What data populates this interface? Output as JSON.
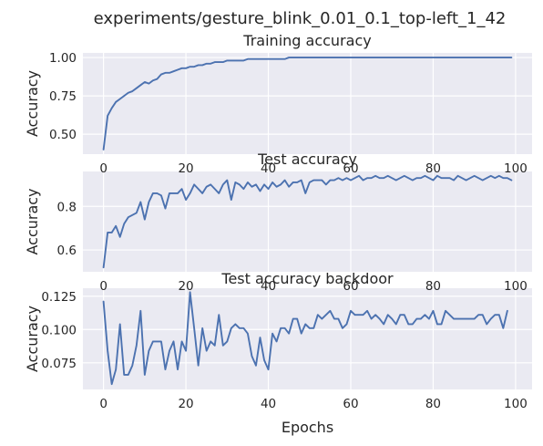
{
  "figure": {
    "suptitle": "experiments/gesture_blink_0.01_0.1_top-left_1_42"
  },
  "chart_data": [
    {
      "type": "line",
      "title": "Training accuracy",
      "xlabel": "",
      "ylabel": "Accuracy",
      "xlim": [
        -5,
        104
      ],
      "ylim": [
        0.37,
        1.03
      ],
      "xticks": [
        0,
        20,
        40,
        60,
        80,
        100
      ],
      "xtick_labels": [
        "0",
        "20",
        "40",
        "60",
        "80",
        "100"
      ],
      "yticks": [
        0.5,
        0.75,
        1.0
      ],
      "ytick_labels": [
        "0.50",
        "0.75",
        "1.00"
      ],
      "grid": true,
      "color": "#4c72b0",
      "x_start": 0,
      "values": [
        0.4,
        0.62,
        0.67,
        0.71,
        0.73,
        0.75,
        0.77,
        0.78,
        0.8,
        0.82,
        0.84,
        0.83,
        0.85,
        0.86,
        0.89,
        0.9,
        0.9,
        0.91,
        0.92,
        0.93,
        0.93,
        0.94,
        0.94,
        0.95,
        0.95,
        0.96,
        0.96,
        0.97,
        0.97,
        0.97,
        0.98,
        0.98,
        0.98,
        0.98,
        0.98,
        0.99,
        0.99,
        0.99,
        0.99,
        0.99,
        0.99,
        0.99,
        0.99,
        0.99,
        0.99,
        1.0,
        1.0,
        1.0,
        1.0,
        1.0,
        1.0,
        1.0,
        1.0,
        1.0,
        1.0,
        1.0,
        1.0,
        1.0,
        1.0,
        1.0,
        1.0,
        1.0,
        1.0,
        1.0,
        1.0,
        1.0,
        1.0,
        1.0,
        1.0,
        1.0,
        1.0,
        1.0,
        1.0,
        1.0,
        1.0,
        1.0,
        1.0,
        1.0,
        1.0,
        1.0,
        1.0,
        1.0,
        1.0,
        1.0,
        1.0,
        1.0,
        1.0,
        1.0,
        1.0,
        1.0,
        1.0,
        1.0,
        1.0,
        1.0,
        1.0,
        1.0,
        1.0,
        1.0,
        1.0,
        1.0
      ]
    },
    {
      "type": "line",
      "title": "Test accuracy",
      "xlabel": "",
      "ylabel": "Accuracy",
      "xlim": [
        -5,
        104
      ],
      "ylim": [
        0.5,
        0.96
      ],
      "xticks": [
        0,
        20,
        40,
        60,
        80,
        100
      ],
      "xtick_labels": [
        "0",
        "20",
        "40",
        "60",
        "80",
        "100"
      ],
      "yticks": [
        0.6,
        0.8
      ],
      "ytick_labels": [
        "0.6",
        "0.8"
      ],
      "grid": true,
      "color": "#4c72b0",
      "x_start": 0,
      "values": [
        0.52,
        0.68,
        0.68,
        0.71,
        0.66,
        0.72,
        0.75,
        0.76,
        0.77,
        0.82,
        0.74,
        0.82,
        0.86,
        0.86,
        0.85,
        0.79,
        0.86,
        0.86,
        0.86,
        0.88,
        0.83,
        0.86,
        0.9,
        0.88,
        0.86,
        0.89,
        0.9,
        0.88,
        0.86,
        0.9,
        0.92,
        0.83,
        0.91,
        0.9,
        0.88,
        0.91,
        0.89,
        0.9,
        0.87,
        0.9,
        0.88,
        0.91,
        0.89,
        0.9,
        0.92,
        0.89,
        0.91,
        0.91,
        0.92,
        0.86,
        0.91,
        0.92,
        0.92,
        0.92,
        0.9,
        0.92,
        0.92,
        0.93,
        0.92,
        0.93,
        0.92,
        0.93,
        0.94,
        0.92,
        0.93,
        0.93,
        0.94,
        0.93,
        0.93,
        0.94,
        0.93,
        0.92,
        0.93,
        0.94,
        0.93,
        0.92,
        0.93,
        0.93,
        0.94,
        0.93,
        0.92,
        0.94,
        0.93,
        0.93,
        0.93,
        0.92,
        0.94,
        0.93,
        0.92,
        0.93,
        0.94,
        0.93,
        0.92,
        0.93,
        0.94,
        0.93,
        0.94,
        0.93,
        0.93,
        0.92
      ]
    },
    {
      "type": "line",
      "title": "Test accuracy backdoor",
      "xlabel": "Epochs",
      "ylabel": "Accuracy",
      "xlim": [
        -5,
        104
      ],
      "ylim": [
        0.055,
        0.131
      ],
      "xticks": [
        0,
        20,
        40,
        60,
        80,
        100
      ],
      "xtick_labels": [
        "0",
        "20",
        "40",
        "60",
        "80",
        "100"
      ],
      "yticks": [
        0.075,
        0.1,
        0.125
      ],
      "ytick_labels": [
        "0.075",
        "0.100",
        "0.125"
      ],
      "grid": true,
      "color": "#4c72b0",
      "x_start": 0,
      "values": [
        0.121,
        0.084,
        0.059,
        0.07,
        0.104,
        0.066,
        0.066,
        0.073,
        0.088,
        0.114,
        0.066,
        0.084,
        0.091,
        0.091,
        0.091,
        0.07,
        0.084,
        0.091,
        0.07,
        0.091,
        0.084,
        0.128,
        0.101,
        0.073,
        0.101,
        0.084,
        0.091,
        0.088,
        0.111,
        0.088,
        0.091,
        0.101,
        0.104,
        0.101,
        0.101,
        0.097,
        0.08,
        0.073,
        0.094,
        0.077,
        0.07,
        0.097,
        0.091,
        0.101,
        0.101,
        0.097,
        0.108,
        0.108,
        0.097,
        0.104,
        0.101,
        0.101,
        0.111,
        0.108,
        0.111,
        0.114,
        0.108,
        0.108,
        0.101,
        0.104,
        0.114,
        0.111,
        0.111,
        0.111,
        0.114,
        0.108,
        0.111,
        0.108,
        0.104,
        0.111,
        0.108,
        0.104,
        0.111,
        0.111,
        0.104,
        0.104,
        0.108,
        0.108,
        0.111,
        0.108,
        0.114,
        0.104,
        0.104,
        0.114,
        0.111,
        0.108,
        0.108,
        0.108,
        0.108,
        0.108,
        0.108,
        0.111,
        0.111,
        0.104,
        0.108,
        0.111,
        0.111,
        0.101,
        0.114
      ]
    }
  ]
}
